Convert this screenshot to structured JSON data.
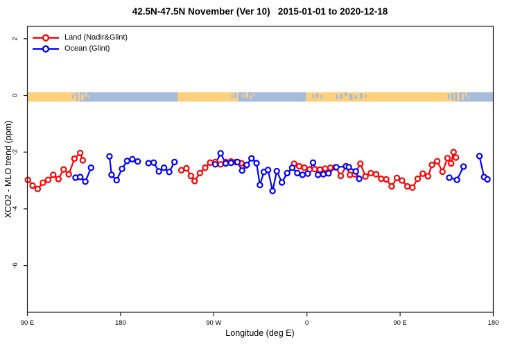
{
  "title": "42.5N-47.5N November (Ver 10)   2015-01-01 to 2020-12-18",
  "legend": [
    {
      "label": "Land (Nadir&Glint)",
      "color": "#ff0000"
    },
    {
      "label": "Ocean (Glint)",
      "color": "#0000ff"
    }
  ],
  "chart_data": {
    "type": "line",
    "title": "42.5N-47.5N November (Ver 10)   2015-01-01 to 2020-12-18",
    "xlabel": "Longitude (deg E)",
    "ylabel": "XCO2 - MLO trend (ppm)",
    "marker": "open-circle",
    "x_axis": {
      "unit": "degrees eastward from 90E (axis wraps 90E → 180 → 90W → 0 → 90E → 180)",
      "range": [
        0,
        450
      ],
      "tick_offsets": [
        0,
        90,
        180,
        270,
        360,
        450
      ],
      "tick_labels": [
        "90 E",
        "180",
        "90 W",
        "0",
        "90 E",
        "180"
      ]
    },
    "y_axis": {
      "range": [
        -7.65,
        2.45
      ],
      "tick_values": [
        2,
        0,
        -2,
        -4,
        -6
      ],
      "tick_labels": [
        "2",
        "0",
        "-2",
        "-4",
        "-6"
      ]
    },
    "grid": false,
    "legend_position": "top-left inside plot",
    "series": [
      {
        "name": "Land (Nadir&Glint)",
        "color": "#ff0000",
        "segments": [
          [
            [
              0.5,
              -2.98
            ],
            [
              5,
              -3.18
            ],
            [
              10,
              -3.3
            ],
            [
              15,
              -3.08
            ],
            [
              20,
              -2.98
            ],
            [
              25,
              -2.8
            ],
            [
              30,
              -2.95
            ],
            [
              35,
              -2.61
            ],
            [
              40,
              -2.78
            ],
            [
              45.5,
              -2.23
            ],
            [
              51,
              -2.03
            ],
            [
              53.5,
              -2.29
            ]
          ],
          [
            [
              148.7,
              -2.64
            ],
            [
              153.6,
              -2.57
            ],
            [
              158,
              -2.84
            ],
            [
              161.5,
              -3.02
            ],
            [
              166.6,
              -2.74
            ],
            [
              171.7,
              -2.55
            ],
            [
              176.6,
              -2.37
            ],
            [
              181.5,
              -2.35
            ],
            [
              186.6,
              -2.43
            ],
            [
              191.6,
              -2.35
            ],
            [
              196.7,
              -2.33
            ],
            [
              201.6,
              -2.35
            ],
            [
              206.7,
              -2.39
            ],
            [
              211.2,
              -2.47
            ]
          ],
          [
            [
              257.6,
              -2.41
            ],
            [
              262.6,
              -2.5
            ],
            [
              267.6,
              -2.55
            ],
            [
              272.6,
              -2.61
            ],
            [
              277.5,
              -2.6
            ],
            [
              282.6,
              -2.62
            ],
            [
              287.7,
              -2.58
            ],
            [
              292.7,
              -2.55
            ],
            [
              297.8,
              -2.53
            ],
            [
              302.7,
              -2.84
            ],
            [
              307.8,
              -2.5
            ],
            [
              311.6,
              -2.8
            ],
            [
              316.1,
              -2.78
            ],
            [
              321.6,
              -2.41
            ],
            [
              326.5,
              -2.86
            ],
            [
              331.7,
              -2.74
            ],
            [
              336.8,
              -2.78
            ],
            [
              341.7,
              -2.94
            ],
            [
              346.6,
              -2.96
            ],
            [
              351.8,
              -3.21
            ],
            [
              356.9,
              -2.91
            ],
            [
              361.8,
              -3.0
            ],
            [
              367,
              -3.21
            ],
            [
              371.9,
              -3.25
            ],
            [
              377,
              -2.94
            ],
            [
              381.9,
              -2.76
            ],
            [
              386.9,
              -2.85
            ],
            [
              390.8,
              -2.45
            ],
            [
              395.8,
              -2.32
            ],
            [
              400.9,
              -2.69
            ],
            [
              405.8,
              -2.21
            ],
            [
              409.2,
              -2.4
            ],
            [
              411.6,
              -2.0
            ],
            [
              413.9,
              -2.19
            ]
          ]
        ]
      },
      {
        "name": "Ocean (Glint)",
        "color": "#0000ff",
        "segments": [
          [
            [
              46.5,
              -2.9
            ],
            [
              51,
              -2.88
            ],
            [
              56,
              -3.04
            ],
            [
              61.5,
              -2.55
            ]
          ],
          [
            [
              79.3,
              -2.15
            ],
            [
              81.3,
              -2.8
            ],
            [
              86.2,
              -2.99
            ],
            [
              91.4,
              -2.59
            ],
            [
              96.3,
              -2.31
            ],
            [
              101.4,
              -2.25
            ],
            [
              106.6,
              -2.33
            ]
          ],
          [
            [
              117,
              -2.39
            ],
            [
              122,
              -2.37
            ],
            [
              127,
              -2.68
            ],
            [
              132,
              -2.55
            ],
            [
              137,
              -2.7
            ],
            [
              142.1,
              -2.35
            ]
          ],
          [
            [
              181.5,
              -2.43
            ],
            [
              186.6,
              -2.04
            ],
            [
              191.6,
              -2.4
            ],
            [
              196.7,
              -2.38
            ],
            [
              202.9,
              -2.35
            ],
            [
              207.4,
              -2.65
            ],
            [
              211.9,
              -2.45
            ],
            [
              216.4,
              -2.22
            ],
            [
              221.3,
              -2.39
            ],
            [
              224.6,
              -3.16
            ],
            [
              228.4,
              -2.7
            ],
            [
              232.4,
              -2.63
            ],
            [
              236.8,
              -3.37
            ],
            [
              240.9,
              -2.67
            ],
            [
              245.8,
              -3.07
            ],
            [
              250.9,
              -2.74
            ],
            [
              255.8,
              -2.55
            ],
            [
              260.7,
              -2.74
            ],
            [
              265.7,
              -2.8
            ],
            [
              270.8,
              -2.76
            ],
            [
              275.9,
              -2.37
            ],
            [
              280.7,
              -2.8
            ],
            [
              285.9,
              -2.78
            ],
            [
              290.8,
              -2.75
            ],
            [
              298.3,
              -2.53
            ],
            [
              307.8,
              -2.5
            ],
            [
              310.5,
              -2.53
            ],
            [
              317.2,
              -2.68
            ],
            [
              320.5,
              -2.94
            ]
          ],
          [
            [
              407.5,
              -2.9
            ],
            [
              414.9,
              -2.98
            ],
            [
              421.3,
              -2.51
            ]
          ],
          [
            [
              436.6,
              -2.14
            ],
            [
              441.1,
              -2.88
            ],
            [
              444.4,
              -2.96
            ]
          ]
        ]
      }
    ],
    "map_strip": {
      "description": "land/ocean mask band drawn along y=0",
      "land_color": "#fcd17d",
      "ocean_color": "#a7bcdc",
      "segments": [
        {
          "from": 0,
          "to": 47,
          "type": "land"
        },
        {
          "from": 47,
          "to": 145,
          "type": "ocean"
        },
        {
          "from": 145,
          "to": 205.5,
          "type": "land"
        },
        {
          "from": 205.5,
          "to": 269.3,
          "type": "ocean"
        },
        {
          "from": 269.3,
          "to": 417,
          "type": "land"
        },
        {
          "from": 417,
          "to": 450,
          "type": "ocean"
        }
      ],
      "speckles_land": [
        {
          "at": 48.5,
          "w": 2,
          "h": 13.5,
          "dy": 0
        },
        {
          "at": 52,
          "w": 2.5,
          "h": 8,
          "dy": 3
        },
        {
          "at": 56,
          "w": 1.5,
          "h": 7,
          "dy": 0
        },
        {
          "at": 59,
          "w": 1,
          "h": 5,
          "dy": 4
        },
        {
          "at": 207.5,
          "w": 1.5,
          "h": 6,
          "dy": 2
        },
        {
          "at": 211,
          "w": 2,
          "h": 8,
          "dy": 0
        },
        {
          "at": 215,
          "w": 1.5,
          "h": 6,
          "dy": 4
        },
        {
          "at": 218,
          "w": 1,
          "h": 5,
          "dy": 1
        },
        {
          "at": 419.5,
          "w": 2,
          "h": 9,
          "dy": 2
        },
        {
          "at": 423,
          "w": 1.5,
          "h": 6,
          "dy": 0
        },
        {
          "at": 426,
          "w": 1,
          "h": 5,
          "dy": 5
        }
      ],
      "speckles_ocean": [
        {
          "at": 43,
          "w": 1.5,
          "h": 6,
          "dy": 3
        },
        {
          "at": 45.5,
          "w": 1,
          "h": 5,
          "dy": 0
        },
        {
          "at": 197,
          "w": 1.5,
          "h": 7,
          "dy": 2
        },
        {
          "at": 200,
          "w": 2,
          "h": 9,
          "dy": 0
        },
        {
          "at": 203.5,
          "w": 2,
          "h": 13.5,
          "dy": 0
        },
        {
          "at": 275.5,
          "w": 1.5,
          "h": 6,
          "dy": 3
        },
        {
          "at": 279,
          "w": 2,
          "h": 7,
          "dy": 1
        },
        {
          "at": 283,
          "w": 1.5,
          "h": 5,
          "dy": 4
        },
        {
          "at": 298,
          "w": 2,
          "h": 7,
          "dy": 3
        },
        {
          "at": 302,
          "w": 2.5,
          "h": 8,
          "dy": 2
        },
        {
          "at": 306.5,
          "w": 2,
          "h": 6,
          "dy": 0
        },
        {
          "at": 311,
          "w": 3,
          "h": 9,
          "dy": 2
        },
        {
          "at": 316,
          "w": 2,
          "h": 6,
          "dy": 4
        },
        {
          "at": 321,
          "w": 2.5,
          "h": 8,
          "dy": 1
        },
        {
          "at": 326,
          "w": 1.5,
          "h": 5,
          "dy": 3
        },
        {
          "at": 406,
          "w": 2,
          "h": 8,
          "dy": 2
        },
        {
          "at": 409.5,
          "w": 2.5,
          "h": 10,
          "dy": 1
        },
        {
          "at": 413,
          "w": 2,
          "h": 13.5,
          "dy": 0
        }
      ]
    }
  }
}
